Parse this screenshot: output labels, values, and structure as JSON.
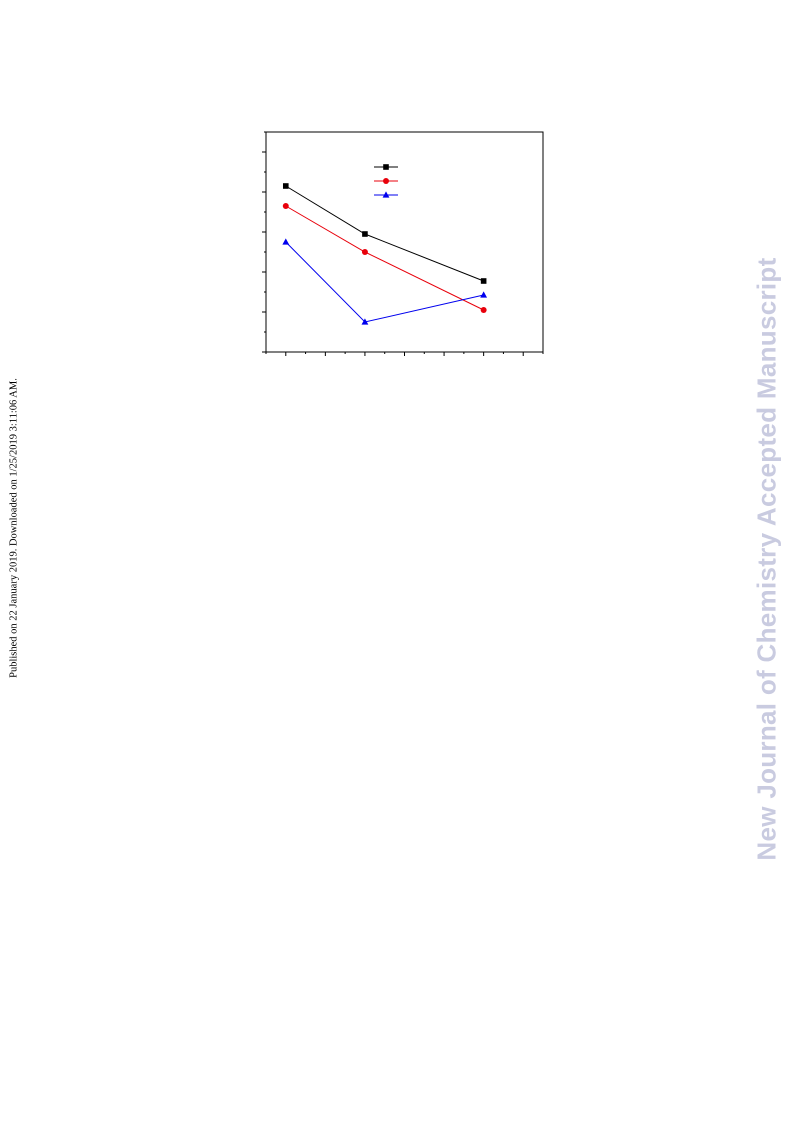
{
  "side_note": "Published on 22 January 2019. Downloaded on 1/25/2019 3:11:06 AM.",
  "watermark": {
    "text": "New Journal of Chemistry Accepted Manuscript",
    "color": "#c9cbe0"
  },
  "chart_data": {
    "type": "line",
    "title": "",
    "xlabel": "",
    "ylabel": "",
    "x": [
      1,
      3,
      6
    ],
    "xlim": [
      0.5,
      7.5
    ],
    "ylim": [
      0,
      11
    ],
    "grid": false,
    "legend_position": "top-center",
    "series": [
      {
        "values": [
          8.3,
          5.9,
          3.55
        ],
        "color": "#000000",
        "marker": "square"
      },
      {
        "values": [
          7.3,
          5.0,
          2.1
        ],
        "color": "#e8000b",
        "marker": "circle"
      },
      {
        "values": [
          5.5,
          1.5,
          2.85
        ],
        "color": "#0000ee",
        "marker": "triangle"
      }
    ]
  }
}
